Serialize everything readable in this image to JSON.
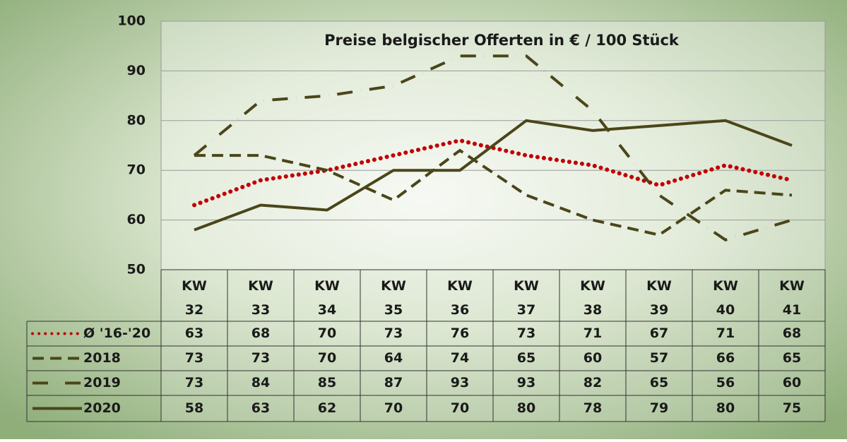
{
  "chart_data": {
    "type": "line",
    "title": "Preise belgischer Offerten in € / 100 Stück",
    "categories": [
      "KW 32",
      "KW 33",
      "KW 34",
      "KW 35",
      "KW 36",
      "KW 37",
      "KW 38",
      "KW 39",
      "KW 40",
      "KW 41"
    ],
    "series": [
      {
        "name": "Ø '16-'20",
        "color": "#c00000",
        "style": "dotted",
        "values": [
          63,
          68,
          70,
          73,
          76,
          73,
          71,
          67,
          71,
          68
        ]
      },
      {
        "name": "2018",
        "color": "#4a4619",
        "style": "dashed",
        "values": [
          73,
          73,
          70,
          64,
          74,
          65,
          60,
          57,
          66,
          65
        ]
      },
      {
        "name": "2019",
        "color": "#4a4619",
        "style": "dashdot",
        "values": [
          73,
          84,
          85,
          87,
          93,
          93,
          82,
          65,
          56,
          60
        ]
      },
      {
        "name": "2020",
        "color": "#4a4619",
        "style": "solid",
        "values": [
          58,
          63,
          62,
          70,
          70,
          80,
          78,
          79,
          80,
          75
        ]
      }
    ],
    "ylim": [
      50,
      100
    ],
    "yticks": [
      50,
      60,
      70,
      80,
      90,
      100
    ],
    "grid": true
  }
}
